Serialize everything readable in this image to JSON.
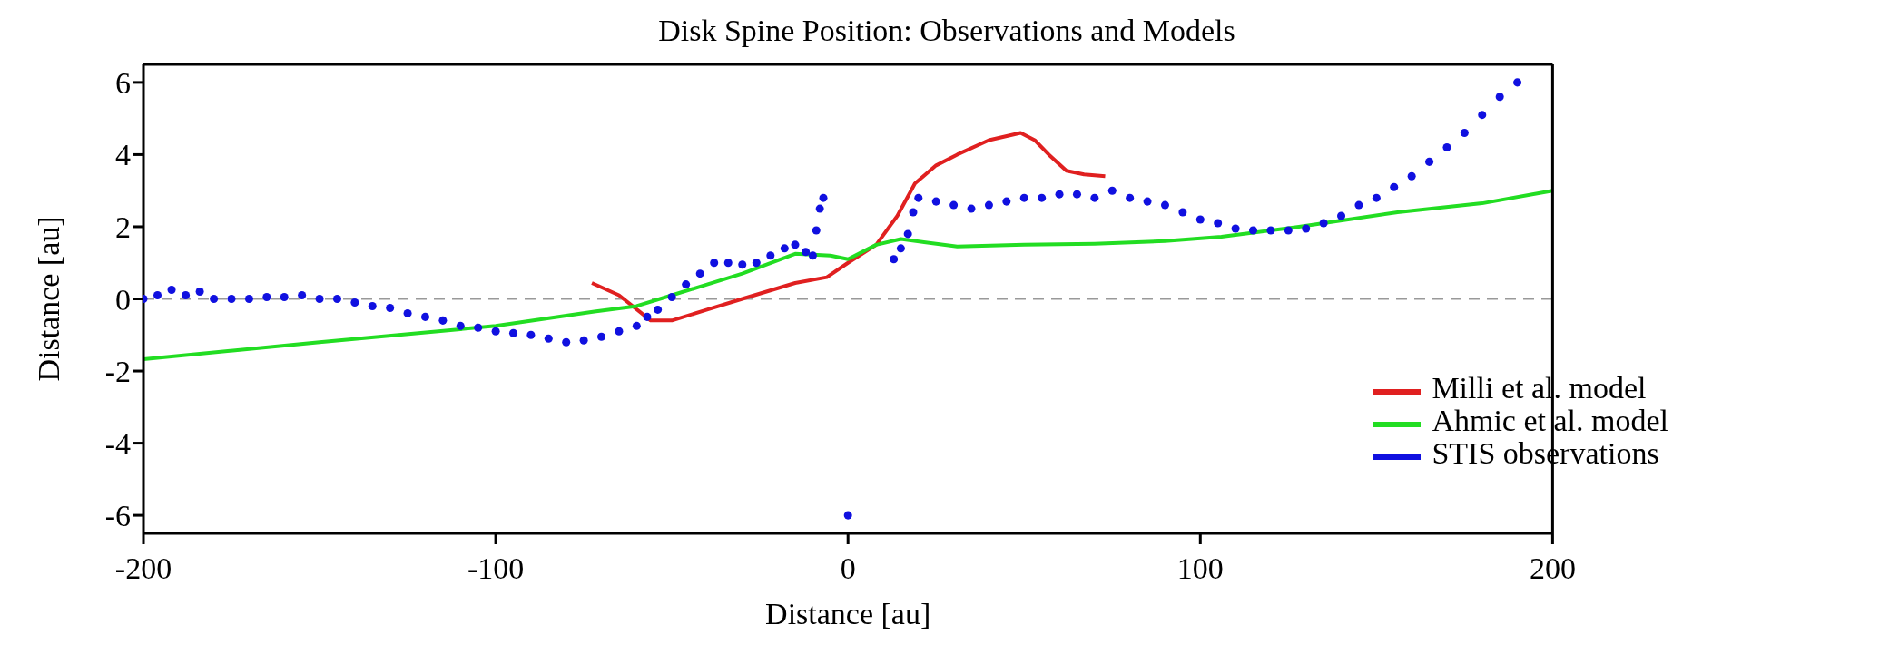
{
  "chart_data": {
    "type": "line",
    "title": "Disk Spine Position: Observations and Models",
    "xlabel": "Distance [au]",
    "ylabel": "Distance [au]",
    "xlim": [
      -200,
      200
    ],
    "xticks": [
      -200,
      -100,
      0,
      100,
      200
    ],
    "ylim": [
      -6.5,
      6.5
    ],
    "yticks": [
      -6,
      -4,
      -2,
      0,
      2,
      4,
      6
    ],
    "grid": false,
    "legend": "bottom right",
    "ref_lines": [
      {
        "axis": "y",
        "value": 0,
        "color": "#999999",
        "line_style": "dashed"
      }
    ],
    "series": [
      {
        "name": "Milli et al. model",
        "color": "#e02020",
        "x": [
          -72.7,
          -65,
          -56,
          -50,
          -40,
          -30,
          -15,
          -6,
          0,
          8,
          14,
          19,
          25,
          31,
          40,
          49,
          53,
          57,
          62,
          67,
          73
        ],
        "values": [
          0.44,
          0.1,
          -0.6,
          -0.6,
          -0.3,
          0.0,
          0.44,
          0.6,
          1.0,
          1.5,
          2.3,
          3.2,
          3.7,
          4.0,
          4.4,
          4.6,
          4.4,
          4.0,
          3.55,
          3.45,
          3.4
        ]
      },
      {
        "name": "Ahmic et al. model",
        "color": "#22dd22",
        "x": [
          -200,
          -150,
          -100,
          -72,
          -60,
          -50,
          -40,
          -30,
          -15,
          -5,
          0,
          8,
          15,
          31,
          50,
          70,
          90,
          106,
          128,
          156,
          180,
          200
        ],
        "values": [
          -1.67,
          -1.2,
          -0.75,
          -0.35,
          -0.2,
          0.1,
          0.4,
          0.7,
          1.25,
          1.2,
          1.1,
          1.5,
          1.66,
          1.45,
          1.5,
          1.53,
          1.6,
          1.72,
          2.0,
          2.4,
          2.65,
          3.0
        ]
      },
      {
        "name": "STIS observations",
        "type": "scatter",
        "color": "#1010e0",
        "marker": "circle",
        "x": [
          -200,
          -196,
          -192,
          -188,
          -184,
          -180,
          -175,
          -170,
          -165,
          -160,
          -155,
          -150,
          -145,
          -140,
          -135,
          -130,
          -125,
          -120,
          -115,
          -110,
          -105,
          -100,
          -95,
          -90,
          -85,
          -80,
          -75,
          -70,
          -65,
          -60,
          -57,
          -54,
          -50,
          -46,
          -42,
          -38,
          -34,
          -30,
          -26,
          -22,
          -18,
          -15,
          -12,
          -10,
          -9,
          -8,
          -7,
          0,
          13,
          15,
          17,
          18.5,
          20,
          25,
          30,
          35,
          40,
          45,
          50,
          55,
          60,
          65,
          70,
          75,
          80,
          85,
          90,
          95,
          100,
          105,
          110,
          115,
          120,
          125,
          130,
          135,
          140,
          145,
          150,
          155,
          160,
          165,
          170,
          175,
          180,
          185,
          190
        ],
        "values": [
          0,
          0.1,
          0.25,
          0.1,
          0.2,
          0,
          0,
          0,
          0.05,
          0.05,
          0.1,
          0,
          0,
          -0.1,
          -0.2,
          -0.25,
          -0.4,
          -0.5,
          -0.6,
          -0.75,
          -0.8,
          -0.9,
          -0.95,
          -1.0,
          -1.1,
          -1.2,
          -1.15,
          -1.05,
          -0.9,
          -0.75,
          -0.5,
          -0.3,
          0.05,
          0.4,
          0.7,
          1.0,
          1.0,
          0.95,
          1.0,
          1.2,
          1.4,
          1.5,
          1.3,
          1.2,
          1.9,
          2.5,
          2.8,
          -6,
          1.1,
          1.4,
          1.8,
          2.4,
          2.8,
          2.7,
          2.6,
          2.5,
          2.6,
          2.7,
          2.8,
          2.8,
          2.9,
          2.9,
          2.8,
          3.0,
          2.8,
          2.7,
          2.6,
          2.4,
          2.2,
          2.1,
          1.95,
          1.9,
          1.9,
          1.9,
          1.95,
          2.1,
          2.3,
          2.6,
          2.8,
          3.1,
          3.4,
          3.8,
          4.2,
          4.6,
          5.1,
          5.6,
          6.0
        ]
      }
    ]
  }
}
